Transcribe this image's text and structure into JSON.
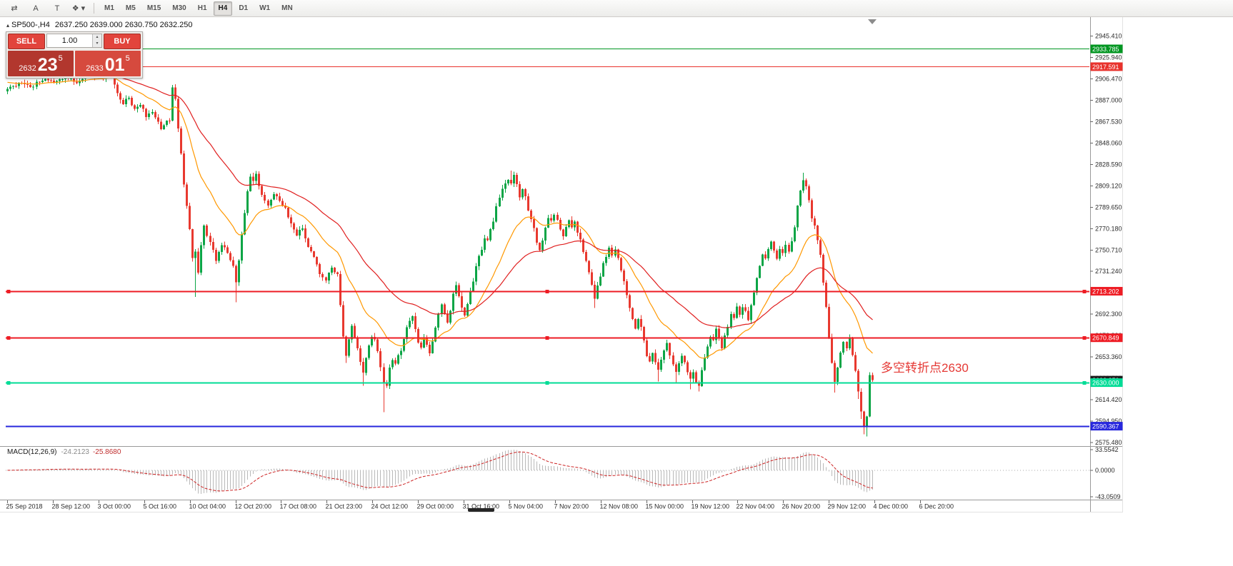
{
  "toolbar": {
    "tools": [
      {
        "name": "charts-tool",
        "glyph": "⇄"
      },
      {
        "name": "annotation-tool",
        "glyph": "A"
      },
      {
        "name": "text-tool",
        "glyph": "T"
      },
      {
        "name": "shapes-tool",
        "glyph": "❖ ▾"
      }
    ],
    "timeframes": [
      "M1",
      "M5",
      "M15",
      "M30",
      "H1",
      "H4",
      "D1",
      "W1",
      "MN"
    ],
    "active_timeframe": "H4"
  },
  "chart": {
    "icon_glyph": "▴",
    "symbol_period": "SP500-,H4",
    "ohlc": "2637.250 2639.000 2630.750 2632.250"
  },
  "trade_panel": {
    "sell_label": "SELL",
    "buy_label": "BUY",
    "volume": "1.00",
    "spin_up": "▴",
    "spin_down": "▾",
    "sell_price": {
      "prefix": "2632",
      "pips": "23",
      "frac": "5"
    },
    "buy_price": {
      "prefix": "2633",
      "pips": "01",
      "frac": "5"
    },
    "colors": {
      "button": "#e2443c",
      "sell_tile": "#b2372e",
      "buy_tile": "#d64a3e"
    }
  },
  "annotation": {
    "text": "多空转折点2630",
    "color": "#e53935"
  },
  "bid_label": {
    "text": "2632.250",
    "price": 2632.25,
    "color": "#1c1c1c"
  },
  "hlines": [
    {
      "price": 2933.785,
      "label": "2933.785",
      "color": "#009621",
      "width": 1,
      "handles": false
    },
    {
      "price": 2917.591,
      "label": "2917.591",
      "color": "#e8322c",
      "width": 1,
      "handles": false
    },
    {
      "price": 2713.202,
      "label": "2713.202",
      "color": "#ee1c24",
      "width": 2,
      "handles": true
    },
    {
      "price": 2670.849,
      "label": "2670.849",
      "color": "#ee1c24",
      "width": 2,
      "handles": true
    },
    {
      "price": 2630.0,
      "label": "2630.000",
      "color": "#00dc96",
      "width": 2,
      "handles": true
    },
    {
      "price": 2590.367,
      "label": "2590.367",
      "color": "#2727dd",
      "width": 2,
      "handles": false
    }
  ],
  "price_axis": {
    "ticks": [
      "2575.480",
      "2594.950",
      "2614.420",
      "2633.890",
      "2653.360",
      "2672.830",
      "2692.300",
      "2711.770",
      "2731.240",
      "2750.710",
      "2770.180",
      "2789.650",
      "2809.120",
      "2828.590",
      "2848.060",
      "2867.530",
      "2887.000",
      "2906.470",
      "2925.940",
      "2945.410"
    ]
  },
  "time_axis": {
    "labels": [
      "25 Sep 2018",
      "28 Sep 12:00",
      "3 Oct 00:00",
      "5 Oct 16:00",
      "10 Oct 04:00",
      "12 Oct 20:00",
      "17 Oct 08:00",
      "21 Oct 23:00",
      "24 Oct 12:00",
      "29 Oct 00:00",
      "31 Oct 16:00",
      "5 Nov 04:00",
      "7 Nov 20:00",
      "12 Nov 08:00",
      "15 Nov 00:00",
      "19 Nov 12:00",
      "22 Nov 04:00",
      "26 Nov 20:00",
      "29 Nov 12:00",
      "4 Dec 00:00",
      "6 Dec 20:00"
    ]
  },
  "macd": {
    "label": "MACD(12,26,9)",
    "value1": "-24.2123",
    "value2": "-25.8680",
    "axis_labels": [
      "33.5542",
      "0.0000",
      "-43.0509"
    ]
  },
  "chart_data": {
    "type": "candlestick",
    "symbol": "SP500-",
    "period": "H4",
    "bars": 300,
    "seed": 20181207,
    "first_open": 2895,
    "current_bar": {
      "open": 2637.25,
      "high": 2639.0,
      "low": 2630.75,
      "close": 2632.25
    },
    "ma_fast_period": 20,
    "ma_fast_seed": 2904,
    "ma_slow_period": 50,
    "ma_slow_seed": 2921,
    "macd_params": [
      12,
      26,
      9
    ],
    "colors": {
      "up": "#0ca546",
      "down": "#e8392f",
      "ma_fast": "#ff9800",
      "ma_slow": "#e01f1f",
      "macd_hist": "#b9b9b9",
      "macd_signal": "#cc2222"
    },
    "waypoints": [
      [
        0,
        2897
      ],
      [
        4,
        2903
      ],
      [
        8,
        2899
      ],
      [
        12,
        2906
      ],
      [
        16,
        2903
      ],
      [
        20,
        2908
      ],
      [
        24,
        2904
      ],
      [
        28,
        2910
      ],
      [
        32,
        2907
      ],
      [
        36,
        2912
      ],
      [
        38,
        2893
      ],
      [
        40,
        2885
      ],
      [
        42,
        2890
      ],
      [
        44,
        2878
      ],
      [
        46,
        2884
      ],
      [
        48,
        2872
      ],
      [
        50,
        2876
      ],
      [
        53,
        2862
      ],
      [
        55,
        2870
      ],
      [
        56,
        2868
      ],
      [
        57,
        2898
      ],
      [
        58,
        2890
      ],
      [
        59,
        2862
      ],
      [
        60,
        2840
      ],
      [
        61,
        2812
      ],
      [
        62,
        2792
      ],
      [
        63,
        2770
      ],
      [
        64,
        2742
      ],
      [
        65,
        2748
      ],
      [
        66,
        2730
      ],
      [
        67,
        2755
      ],
      [
        68,
        2772
      ],
      [
        70,
        2758
      ],
      [
        72,
        2742
      ],
      [
        74,
        2756
      ],
      [
        76,
        2748
      ],
      [
        78,
        2735
      ],
      [
        79,
        2720
      ],
      [
        80,
        2742
      ],
      [
        82,
        2785
      ],
      [
        83,
        2805
      ],
      [
        84,
        2818
      ],
      [
        85,
        2812
      ],
      [
        86,
        2820
      ],
      [
        88,
        2800
      ],
      [
        90,
        2792
      ],
      [
        92,
        2803
      ],
      [
        94,
        2795
      ],
      [
        96,
        2788
      ],
      [
        98,
        2775
      ],
      [
        100,
        2765
      ],
      [
        102,
        2770
      ],
      [
        104,
        2752
      ],
      [
        106,
        2745
      ],
      [
        108,
        2730
      ],
      [
        110,
        2722
      ],
      [
        112,
        2735
      ],
      [
        114,
        2728
      ],
      [
        115,
        2700
      ],
      [
        116,
        2672
      ],
      [
        117,
        2655
      ],
      [
        118,
        2668
      ],
      [
        119,
        2680
      ],
      [
        120,
        2672
      ],
      [
        121,
        2662
      ],
      [
        122,
        2648
      ],
      [
        123,
        2640
      ],
      [
        124,
        2652
      ],
      [
        125,
        2665
      ],
      [
        126,
        2673
      ],
      [
        127,
        2668
      ],
      [
        128,
        2660
      ],
      [
        129,
        2645
      ],
      [
        130,
        2630
      ],
      [
        131,
        2628
      ],
      [
        132,
        2645
      ],
      [
        133,
        2652
      ],
      [
        134,
        2648
      ],
      [
        136,
        2660
      ],
      [
        138,
        2682
      ],
      [
        140,
        2690
      ],
      [
        141,
        2678
      ],
      [
        142,
        2668
      ],
      [
        143,
        2662
      ],
      [
        144,
        2672
      ],
      [
        145,
        2665
      ],
      [
        146,
        2658
      ],
      [
        147,
        2668
      ],
      [
        148,
        2680
      ],
      [
        149,
        2692
      ],
      [
        150,
        2700
      ],
      [
        151,
        2692
      ],
      [
        152,
        2685
      ],
      [
        153,
        2695
      ],
      [
        154,
        2710
      ],
      [
        155,
        2718
      ],
      [
        156,
        2710
      ],
      [
        157,
        2698
      ],
      [
        158,
        2690
      ],
      [
        159,
        2700
      ],
      [
        160,
        2712
      ],
      [
        161,
        2722
      ],
      [
        162,
        2735
      ],
      [
        163,
        2745
      ],
      [
        164,
        2752
      ],
      [
        165,
        2762
      ],
      [
        166,
        2758
      ],
      [
        167,
        2770
      ],
      [
        168,
        2778
      ],
      [
        169,
        2790
      ],
      [
        170,
        2798
      ],
      [
        171,
        2805
      ],
      [
        172,
        2810
      ],
      [
        173,
        2815
      ],
      [
        174,
        2812
      ],
      [
        175,
        2818
      ],
      [
        176,
        2810
      ],
      [
        177,
        2800
      ],
      [
        178,
        2806
      ],
      [
        179,
        2798
      ],
      [
        180,
        2788
      ],
      [
        181,
        2780
      ],
      [
        182,
        2770
      ],
      [
        183,
        2758
      ],
      [
        184,
        2750
      ],
      [
        185,
        2760
      ],
      [
        186,
        2772
      ],
      [
        187,
        2780
      ],
      [
        188,
        2776
      ],
      [
        189,
        2782
      ],
      [
        190,
        2778
      ],
      [
        191,
        2770
      ],
      [
        192,
        2762
      ],
      [
        193,
        2772
      ],
      [
        194,
        2778
      ],
      [
        195,
        2772
      ],
      [
        196,
        2778
      ],
      [
        197,
        2768
      ],
      [
        198,
        2760
      ],
      [
        199,
        2748
      ],
      [
        200,
        2740
      ],
      [
        201,
        2730
      ],
      [
        202,
        2720
      ],
      [
        203,
        2708
      ],
      [
        204,
        2718
      ],
      [
        205,
        2728
      ],
      [
        206,
        2738
      ],
      [
        207,
        2745
      ],
      [
        208,
        2752
      ],
      [
        209,
        2746
      ],
      [
        210,
        2750
      ],
      [
        211,
        2742
      ],
      [
        212,
        2732
      ],
      [
        213,
        2722
      ],
      [
        214,
        2710
      ],
      [
        215,
        2698
      ],
      [
        216,
        2688
      ],
      [
        217,
        2678
      ],
      [
        218,
        2688
      ],
      [
        219,
        2680
      ],
      [
        220,
        2668
      ],
      [
        221,
        2655
      ],
      [
        222,
        2648
      ],
      [
        223,
        2658
      ],
      [
        224,
        2650
      ],
      [
        225,
        2642
      ],
      [
        226,
        2650
      ],
      [
        227,
        2658
      ],
      [
        228,
        2665
      ],
      [
        229,
        2655
      ],
      [
        230,
        2648
      ],
      [
        231,
        2640
      ],
      [
        232,
        2648
      ],
      [
        233,
        2655
      ],
      [
        234,
        2648
      ],
      [
        235,
        2638
      ],
      [
        236,
        2632
      ],
      [
        237,
        2640
      ],
      [
        238,
        2632
      ],
      [
        239,
        2628
      ],
      [
        240,
        2642
      ],
      [
        241,
        2654
      ],
      [
        242,
        2662
      ],
      [
        243,
        2672
      ],
      [
        244,
        2668
      ],
      [
        245,
        2678
      ],
      [
        246,
        2672
      ],
      [
        247,
        2662
      ],
      [
        248,
        2672
      ],
      [
        249,
        2682
      ],
      [
        250,
        2692
      ],
      [
        251,
        2688
      ],
      [
        252,
        2698
      ],
      [
        253,
        2692
      ],
      [
        254,
        2700
      ],
      [
        255,
        2694
      ],
      [
        256,
        2688
      ],
      [
        257,
        2700
      ],
      [
        258,
        2712
      ],
      [
        259,
        2725
      ],
      [
        260,
        2738
      ],
      [
        261,
        2748
      ],
      [
        262,
        2742
      ],
      [
        263,
        2752
      ],
      [
        264,
        2758
      ],
      [
        265,
        2750
      ],
      [
        266,
        2742
      ],
      [
        267,
        2752
      ],
      [
        268,
        2748
      ],
      [
        269,
        2755
      ],
      [
        270,
        2748
      ],
      [
        271,
        2758
      ],
      [
        272,
        2772
      ],
      [
        273,
        2790
      ],
      [
        274,
        2805
      ],
      [
        275,
        2815
      ],
      [
        276,
        2808
      ],
      [
        277,
        2795
      ],
      [
        278,
        2780
      ],
      [
        279,
        2772
      ],
      [
        280,
        2760
      ],
      [
        281,
        2745
      ],
      [
        282,
        2722
      ],
      [
        283,
        2700
      ],
      [
        284,
        2672
      ],
      [
        285,
        2648
      ],
      [
        286,
        2630
      ],
      [
        287,
        2645
      ],
      [
        288,
        2658
      ],
      [
        289,
        2668
      ],
      [
        290,
        2662
      ],
      [
        291,
        2670
      ],
      [
        292,
        2656
      ],
      [
        293,
        2642
      ],
      [
        294,
        2622
      ],
      [
        295,
        2604
      ],
      [
        296,
        2589
      ],
      [
        297,
        2598
      ],
      [
        298,
        2637
      ],
      [
        299,
        2632.25
      ]
    ],
    "wick_overrides": [
      [
        65,
        "low",
        2708
      ],
      [
        79,
        "low",
        2703
      ],
      [
        117,
        "low",
        2648
      ],
      [
        123,
        "low",
        2627
      ],
      [
        130,
        "low",
        2603
      ],
      [
        174,
        "high",
        2823
      ],
      [
        175,
        "high",
        2822
      ],
      [
        203,
        "low",
        2698
      ],
      [
        225,
        "low",
        2631
      ],
      [
        231,
        "low",
        2629
      ],
      [
        236,
        "low",
        2624
      ],
      [
        239,
        "low",
        2622
      ],
      [
        275,
        "high",
        2821
      ],
      [
        286,
        "low",
        2621
      ],
      [
        294,
        "low",
        2615
      ],
      [
        295,
        "low",
        2597
      ],
      [
        296,
        "low",
        2583
      ],
      [
        297,
        "low",
        2581
      ],
      [
        299,
        "low",
        2630.75
      ],
      [
        299,
        "high",
        2639
      ]
    ]
  }
}
